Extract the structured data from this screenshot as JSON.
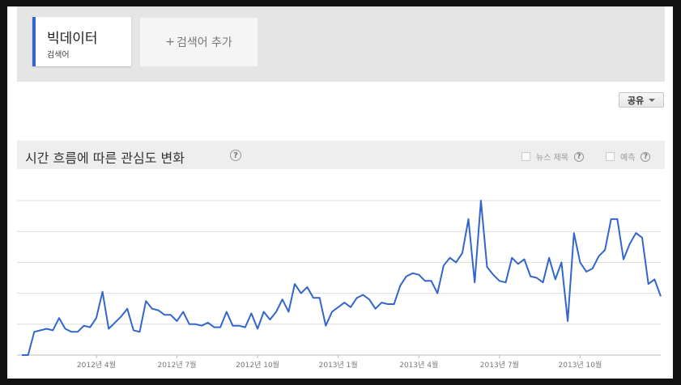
{
  "search_terms": [
    {
      "label": "빅데이터",
      "sublabel": "검색어",
      "color": "#3366cc"
    }
  ],
  "add_term": {
    "plus": "+",
    "label": "검색어 추가"
  },
  "share_button": {
    "label": "공유",
    "icon": "caret-down-icon"
  },
  "section": {
    "title": "시간 흐름에 따른 관심도 변화",
    "help_icon": "?",
    "options": [
      {
        "label": "뉴스 제목",
        "checked": false
      },
      {
        "label": "예측",
        "checked": false
      }
    ]
  },
  "chart_data": {
    "type": "line",
    "title": "",
    "xlabel": "",
    "ylabel": "",
    "ylim": [
      0,
      100
    ],
    "grid": true,
    "line_color": "#3366cc",
    "tick_labels": [
      {
        "label": "2012년 4월",
        "index": 12
      },
      {
        "label": "2012년 7월",
        "index": 25
      },
      {
        "label": "2012년 10월",
        "index": 38
      },
      {
        "label": "2013년 1월",
        "index": 51
      },
      {
        "label": "2013년 4월",
        "index": 64
      },
      {
        "label": "2013년 7월",
        "index": 77
      },
      {
        "label": "2013년 10월",
        "index": 90
      }
    ],
    "series": [
      {
        "values": [
          0,
          0,
          15,
          16,
          17,
          16,
          24,
          17,
          15,
          15,
          19,
          18,
          24,
          41,
          17,
          21,
          25,
          30,
          16,
          15,
          35,
          30,
          29,
          26,
          26,
          22,
          28,
          20,
          20,
          19,
          21,
          18,
          18,
          28,
          19,
          19,
          18,
          27,
          17,
          28,
          23,
          28,
          36,
          28,
          46,
          40,
          44,
          37,
          37,
          19,
          28,
          31,
          34,
          31,
          37,
          39,
          36,
          30,
          34,
          33,
          33,
          45,
          51,
          53,
          52,
          48,
          48,
          40,
          58,
          63,
          60,
          66,
          88,
          47,
          100,
          57,
          52,
          48,
          47,
          63,
          59,
          62,
          51,
          50,
          47,
          63,
          49,
          60,
          22,
          79,
          60,
          54,
          56,
          64,
          68,
          88,
          88,
          62,
          72,
          79,
          76,
          46,
          49,
          38
        ]
      }
    ]
  }
}
